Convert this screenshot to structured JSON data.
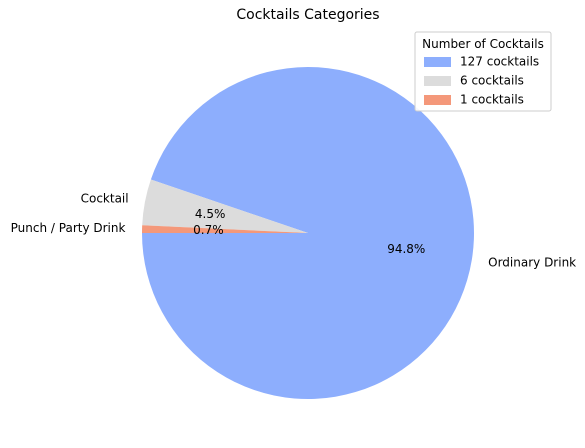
{
  "chart_data": {
    "type": "pie",
    "title": "Cocktails Categories",
    "categories": [
      "Ordinary Drink",
      "Cocktail",
      "Punch / Party Drink"
    ],
    "values": [
      127,
      6,
      1
    ],
    "percent_labels": [
      "94.8%",
      "4.5%",
      "0.7%"
    ],
    "colors": [
      "#8daefd",
      "#dcdcdc",
      "#f4987a"
    ],
    "legend": {
      "title": "Number of Cocktails",
      "entries": [
        "127 cocktails",
        "6 cocktails",
        "1 cocktails"
      ],
      "placement": "upper-right"
    }
  }
}
